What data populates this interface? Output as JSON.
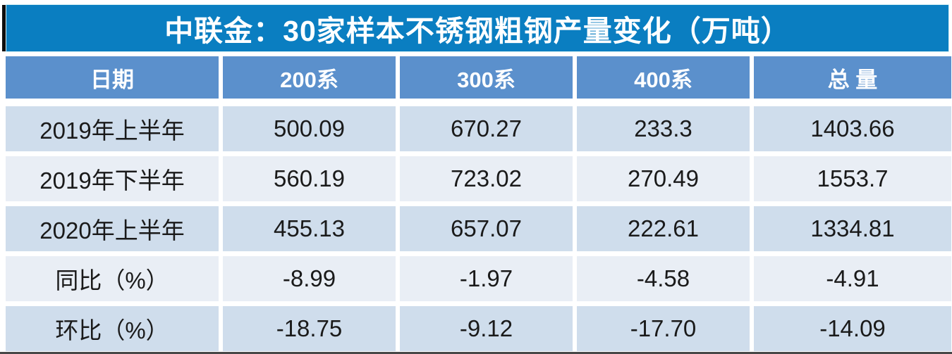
{
  "title": "中联金：30家样本不锈钢粗钢产量变化（万吨）",
  "table": {
    "headers": [
      "日期",
      "200系",
      "300系",
      "400系",
      "总 量"
    ],
    "rows": [
      [
        "2019年上半年",
        "500.09",
        "670.27",
        "233.3",
        "1403.66"
      ],
      [
        "2019年下半年",
        "560.19",
        "723.02",
        "270.49",
        "1553.7"
      ],
      [
        "2020年上半年",
        "455.13",
        "657.07",
        "222.61",
        "1334.81"
      ],
      [
        "同比（%）",
        "-8.99",
        "-1.97",
        "-4.58",
        "-4.91"
      ],
      [
        "环比（%）",
        "-18.75",
        "-9.12",
        "-17.70",
        "-14.09"
      ]
    ]
  },
  "colors": {
    "title_bg": "#0a7ec1",
    "header_bg": "#5b90cc",
    "row_odd_bg": "#cfddec",
    "row_even_bg": "#e9eef5",
    "accent_bar": "#0d0d0d",
    "title_text": "#ffffff",
    "data_text": "#1a1a1a"
  },
  "chart_data": {
    "type": "table",
    "title": "中联金：30家样本不锈钢粗钢产量变化（万吨）",
    "unit": "万吨",
    "columns": [
      "日期",
      "200系",
      "300系",
      "400系",
      "总量"
    ],
    "rows": [
      {
        "日期": "2019年上半年",
        "200系": 500.09,
        "300系": 670.27,
        "400系": 233.3,
        "总量": 1403.66
      },
      {
        "日期": "2019年下半年",
        "200系": 560.19,
        "300系": 723.02,
        "400系": 270.49,
        "总量": 1553.7
      },
      {
        "日期": "2020年上半年",
        "200系": 455.13,
        "300系": 657.07,
        "400系": 222.61,
        "总量": 1334.81
      },
      {
        "日期": "同比（%）",
        "200系": -8.99,
        "300系": -1.97,
        "400系": -4.58,
        "总量": -4.91
      },
      {
        "日期": "环比（%）",
        "200系": -18.75,
        "300系": -9.12,
        "400系": -17.7,
        "总量": -14.09
      }
    ]
  }
}
